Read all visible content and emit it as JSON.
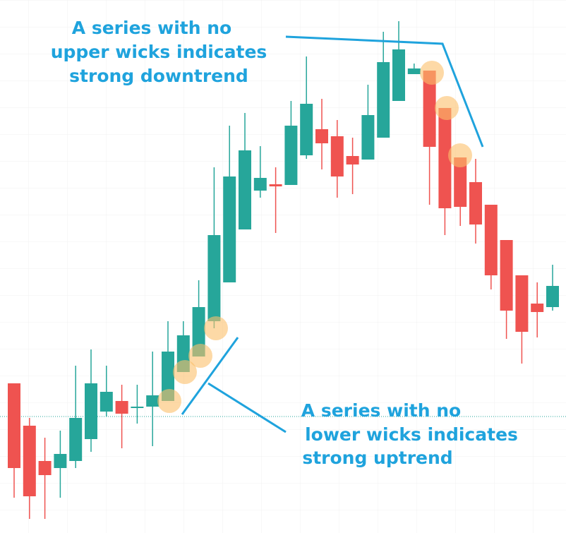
{
  "chart_data": {
    "type": "candlestick",
    "open": [
      212,
      152,
      102,
      92,
      102,
      133,
      172,
      187,
      177,
      179,
      187,
      228,
      250,
      300,
      355,
      430,
      485,
      494,
      493,
      535,
      572,
      562,
      534,
      529,
      560,
      612,
      650,
      655,
      602,
      532,
      497,
      465,
      415,
      365,
      325,
      320
    ],
    "high": [
      212,
      163,
      135,
      145,
      237,
      260,
      237,
      210,
      210,
      257,
      300,
      300,
      358,
      518,
      577,
      595,
      548,
      518,
      612,
      675,
      615,
      585,
      560,
      635,
      710,
      725,
      665,
      655,
      602,
      532,
      530,
      465,
      415,
      365,
      355,
      380
    ],
    "low": [
      50,
      20,
      20,
      50,
      92,
      115,
      165,
      120,
      155,
      123,
      187,
      228,
      250,
      290,
      355,
      430,
      475,
      425,
      493,
      530,
      515,
      475,
      480,
      529,
      560,
      612,
      650,
      465,
      422,
      435,
      410,
      345,
      275,
      240,
      277,
      315
    ],
    "close": [
      92,
      52,
      82,
      112,
      163,
      212,
      200,
      169,
      179,
      195,
      257,
      280,
      320,
      422,
      505,
      542,
      503,
      491,
      577,
      608,
      552,
      505,
      522,
      592,
      667,
      685,
      658,
      547,
      460,
      462,
      437,
      365,
      315,
      285,
      313,
      350
    ],
    "up_color": "#26a69a",
    "down_color": "#ef5350",
    "ylim": [
      0,
      755
    ],
    "reference_line": 165,
    "reference_color": "#26a69a",
    "annotations": [
      [
        "A series with no",
        "upper wicks indicates",
        "strong downtrend"
      ],
      [
        "A series with no",
        "lower wicks indicates",
        "strong uptrend"
      ]
    ],
    "annotation_color": "#1fa3dd"
  }
}
